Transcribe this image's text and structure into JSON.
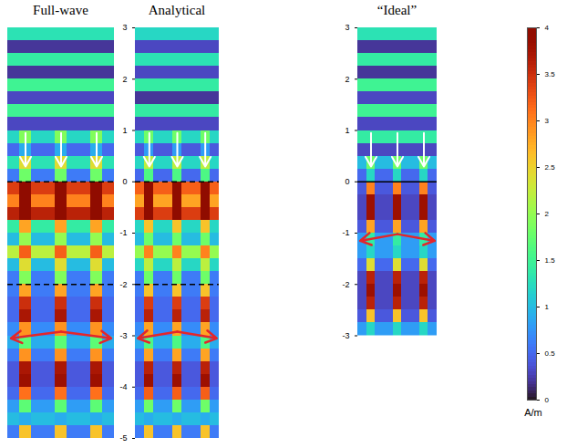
{
  "chart_data": [
    {
      "type": "heatmap",
      "title": "Full-wave",
      "xlim": [
        0,
        9
      ],
      "ylim": [
        -5,
        3
      ],
      "tick_labels": false,
      "ref_lines": [
        {
          "y": 0,
          "line_style": "dashed"
        },
        {
          "y": -2,
          "line_style": "dashed"
        }
      ],
      "arrow_y": -3,
      "values": [
        [
          1.3,
          1.3,
          1.3,
          1.3,
          1.3,
          1.3,
          1.3,
          1.3,
          1.3
        ],
        [
          0.2,
          0.2,
          0.2,
          0.2,
          0.2,
          0.2,
          0.2,
          0.2,
          0.2
        ],
        [
          1.4,
          1.4,
          1.4,
          1.4,
          1.4,
          1.4,
          1.4,
          1.4,
          1.4
        ],
        [
          0.2,
          0.2,
          0.2,
          0.2,
          0.2,
          0.2,
          0.2,
          0.2,
          0.2
        ],
        [
          1.5,
          1.5,
          1.5,
          1.5,
          1.5,
          1.5,
          1.5,
          1.5,
          1.5
        ],
        [
          0.3,
          0.3,
          0.3,
          0.3,
          0.3,
          0.3,
          0.3,
          0.3,
          0.3
        ],
        [
          1.5,
          1.5,
          1.5,
          1.5,
          1.5,
          1.5,
          1.5,
          1.5,
          1.5
        ],
        [
          0.3,
          0.3,
          0.3,
          0.3,
          0.3,
          0.3,
          0.3,
          0.3,
          0.3
        ],
        [
          1.2,
          1.9,
          1.2,
          1.2,
          1.9,
          1.2,
          1.2,
          1.9,
          1.2
        ],
        [
          0.5,
          0.9,
          0.5,
          0.5,
          0.9,
          0.5,
          0.5,
          0.9,
          0.5
        ],
        [
          1.3,
          2.4,
          1.3,
          1.3,
          2.4,
          1.3,
          1.3,
          2.4,
          1.3
        ],
        [
          0.6,
          1.8,
          0.6,
          0.6,
          1.8,
          0.6,
          0.6,
          1.8,
          0.6
        ],
        [
          3.4,
          4,
          3.4,
          3.4,
          4,
          3.4,
          3.4,
          4,
          3.4
        ],
        [
          3.0,
          4,
          3.0,
          3.0,
          4,
          3.0,
          3.0,
          4,
          3.0
        ],
        [
          3.6,
          4,
          3.6,
          3.6,
          4,
          3.6,
          3.6,
          4,
          3.6
        ],
        [
          1.4,
          2.8,
          1.4,
          1.4,
          2.8,
          1.4,
          1.4,
          2.8,
          1.4
        ],
        [
          1.0,
          2.0,
          1.0,
          1.0,
          2.0,
          1.0,
          1.0,
          2.0,
          1.0
        ],
        [
          2.2,
          3.2,
          2.2,
          2.2,
          3.2,
          2.2,
          2.2,
          3.2,
          2.2
        ],
        [
          1.0,
          2.4,
          1.0,
          1.0,
          2.4,
          1.0,
          1.0,
          2.4,
          1.0
        ],
        [
          0.6,
          1.9,
          0.6,
          0.6,
          1.9,
          0.6,
          0.6,
          1.9,
          0.6
        ],
        [
          0.6,
          2.8,
          0.6,
          0.6,
          2.8,
          0.6,
          0.6,
          2.8,
          0.6
        ],
        [
          0.5,
          3.5,
          0.5,
          0.5,
          3.5,
          0.5,
          0.5,
          3.5,
          0.5
        ],
        [
          0.5,
          3.7,
          0.5,
          0.5,
          3.7,
          0.5,
          0.5,
          3.7,
          0.5
        ],
        [
          0.7,
          2.9,
          0.7,
          0.7,
          2.9,
          0.7,
          0.7,
          2.9,
          0.7
        ],
        [
          0.9,
          1.7,
          0.9,
          0.9,
          1.7,
          0.9,
          0.9,
          1.7,
          0.9
        ],
        [
          0.6,
          2.9,
          0.6,
          0.6,
          2.9,
          0.6,
          0.6,
          2.9,
          0.6
        ],
        [
          0.4,
          3.7,
          0.4,
          0.4,
          3.7,
          0.4,
          0.4,
          3.7,
          0.4
        ],
        [
          0.4,
          3.8,
          0.4,
          0.4,
          3.8,
          0.4,
          0.4,
          3.8,
          0.4
        ],
        [
          0.5,
          3.1,
          0.5,
          0.5,
          3.1,
          0.5,
          0.5,
          3.1,
          0.5
        ],
        [
          0.8,
          1.7,
          0.8,
          0.8,
          1.7,
          0.8,
          0.8,
          1.7,
          0.8
        ],
        [
          1.0,
          0.9,
          1.0,
          1.0,
          0.9,
          1.0,
          1.0,
          0.9,
          1.0
        ],
        [
          0.6,
          2.6,
          0.6,
          0.6,
          2.6,
          0.6,
          0.6,
          2.6,
          0.6
        ]
      ]
    },
    {
      "type": "heatmap",
      "title": "Analytical",
      "xlim": [
        0,
        9
      ],
      "ylim": [
        -5,
        3
      ],
      "yticks": [
        3,
        2,
        1,
        0,
        -1,
        -2,
        -3,
        -4,
        -5
      ],
      "tick_labels": "y",
      "ref_lines": [
        {
          "y": 0,
          "line_style": "dashed"
        },
        {
          "y": -2,
          "line_style": "dashed"
        }
      ],
      "arrow_y": -3,
      "values": [
        [
          1.2,
          1.2,
          1.2,
          1.2,
          1.2,
          1.2,
          1.2,
          1.2,
          1.2
        ],
        [
          0.3,
          0.3,
          0.3,
          0.3,
          0.3,
          0.3,
          0.3,
          0.3,
          0.3
        ],
        [
          1.3,
          1.3,
          1.3,
          1.3,
          1.3,
          1.3,
          1.3,
          1.3,
          1.3
        ],
        [
          0.3,
          0.3,
          0.3,
          0.3,
          0.3,
          0.3,
          0.3,
          0.3,
          0.3
        ],
        [
          1.4,
          1.4,
          1.4,
          1.4,
          1.4,
          1.4,
          1.4,
          1.4,
          1.4
        ],
        [
          0.2,
          0.2,
          0.2,
          0.2,
          0.2,
          0.2,
          0.2,
          0.2,
          0.2
        ],
        [
          1.4,
          1.4,
          1.4,
          1.4,
          1.4,
          1.4,
          1.4,
          1.4,
          1.4
        ],
        [
          0.3,
          0.3,
          0.3,
          0.3,
          0.3,
          0.3,
          0.3,
          0.3,
          0.3
        ],
        [
          1.2,
          1.8,
          1.2,
          1.2,
          1.8,
          1.2,
          1.2,
          1.8,
          1.2
        ],
        [
          0.4,
          0.8,
          0.4,
          0.4,
          0.8,
          0.4,
          0.4,
          0.8,
          0.4
        ],
        [
          1.2,
          2.2,
          1.2,
          1.2,
          2.2,
          1.2,
          1.2,
          2.2,
          1.2
        ],
        [
          0.5,
          1.6,
          0.5,
          0.5,
          1.6,
          0.5,
          0.5,
          1.6,
          0.5
        ],
        [
          3.2,
          4,
          3.2,
          3.2,
          4,
          3.2,
          3.2,
          4,
          3.2
        ],
        [
          2.8,
          4,
          2.8,
          2.8,
          4,
          2.8,
          2.8,
          4,
          2.8
        ],
        [
          3.4,
          4,
          3.4,
          3.4,
          4,
          3.4,
          3.4,
          4,
          3.4
        ],
        [
          1.2,
          2.6,
          1.2,
          1.2,
          2.6,
          1.2,
          1.2,
          2.6,
          1.2
        ],
        [
          1.0,
          1.8,
          1.0,
          1.0,
          1.8,
          1.0,
          1.0,
          1.8,
          1.0
        ],
        [
          2.0,
          3.0,
          2.0,
          2.0,
          3.0,
          2.0,
          2.0,
          3.0,
          2.0
        ],
        [
          1.2,
          2.2,
          1.2,
          1.2,
          2.2,
          1.2,
          1.2,
          2.2,
          1.2
        ],
        [
          0.6,
          1.8,
          0.6,
          0.6,
          1.8,
          0.6,
          0.6,
          1.8,
          0.6
        ],
        [
          0.6,
          2.6,
          0.6,
          0.6,
          2.6,
          0.6,
          0.6,
          2.6,
          0.6
        ],
        [
          0.5,
          3.4,
          0.5,
          0.5,
          3.4,
          0.5,
          0.5,
          3.4,
          0.5
        ],
        [
          0.5,
          3.6,
          0.5,
          0.5,
          3.6,
          0.5,
          0.5,
          3.6,
          0.5
        ],
        [
          0.7,
          2.8,
          0.7,
          0.7,
          2.8,
          0.7,
          0.7,
          2.8,
          0.7
        ],
        [
          0.9,
          1.6,
          0.9,
          0.9,
          1.6,
          0.9,
          0.9,
          1.6,
          0.9
        ],
        [
          0.6,
          2.8,
          0.6,
          0.6,
          2.8,
          0.6,
          0.6,
          2.8,
          0.6
        ],
        [
          0.4,
          3.6,
          0.4,
          0.4,
          3.6,
          0.4,
          0.4,
          3.6,
          0.4
        ],
        [
          0.4,
          3.8,
          0.4,
          0.4,
          3.8,
          0.4,
          0.4,
          3.8,
          0.4
        ],
        [
          0.5,
          3.2,
          0.5,
          0.5,
          3.2,
          0.5,
          0.5,
          3.2,
          0.5
        ],
        [
          0.8,
          1.8,
          0.8,
          0.8,
          1.8,
          0.8,
          0.8,
          1.8,
          0.8
        ],
        [
          1.0,
          0.9,
          1.0,
          1.0,
          0.9,
          1.0,
          1.0,
          0.9,
          1.0
        ],
        [
          0.6,
          2.6,
          0.6,
          0.6,
          2.6,
          0.6,
          0.6,
          2.6,
          0.6
        ]
      ]
    },
    {
      "type": "heatmap",
      "title": "“Ideal”",
      "xlim": [
        0,
        9
      ],
      "ylim": [
        -3,
        3
      ],
      "yticks": [
        3,
        2,
        1,
        0,
        -1,
        -2,
        -3
      ],
      "tick_labels": "y",
      "ref_lines": [
        {
          "y": 0,
          "line_style": "solid"
        }
      ],
      "arrow_y": -1.1,
      "values": [
        [
          1.3,
          1.3,
          1.3,
          1.3,
          1.3,
          1.3,
          1.3,
          1.3,
          1.3
        ],
        [
          0.2,
          0.2,
          0.2,
          0.2,
          0.2,
          0.2,
          0.2,
          0.2,
          0.2
        ],
        [
          1.4,
          1.4,
          1.4,
          1.4,
          1.4,
          1.4,
          1.4,
          1.4,
          1.4
        ],
        [
          0.2,
          0.2,
          0.2,
          0.2,
          0.2,
          0.2,
          0.2,
          0.2,
          0.2
        ],
        [
          1.5,
          1.5,
          1.5,
          1.5,
          1.5,
          1.5,
          1.5,
          1.5,
          1.5
        ],
        [
          0.3,
          0.3,
          0.3,
          0.3,
          0.3,
          0.3,
          0.3,
          0.3,
          0.3
        ],
        [
          1.5,
          1.5,
          1.5,
          1.5,
          1.5,
          1.5,
          1.5,
          1.5,
          1.5
        ],
        [
          0.3,
          0.3,
          0.3,
          0.3,
          0.3,
          0.3,
          0.3,
          0.3,
          0.3
        ],
        [
          1.4,
          1.4,
          1.4,
          1.4,
          1.4,
          1.4,
          1.4,
          1.4,
          1.4
        ],
        [
          0.3,
          0.3,
          0.3,
          0.3,
          0.3,
          0.3,
          0.3,
          0.3,
          0.3
        ],
        [
          1.0,
          1.8,
          1.0,
          1.0,
          1.8,
          1.0,
          1.0,
          1.8,
          1.0
        ],
        [
          0.5,
          1.2,
          0.5,
          0.5,
          1.2,
          0.5,
          0.5,
          1.2,
          0.5
        ],
        [
          0.4,
          3.0,
          0.4,
          0.4,
          3.0,
          0.4,
          0.4,
          3.0,
          0.4
        ],
        [
          0.3,
          3.8,
          0.3,
          0.3,
          3.8,
          0.3,
          0.3,
          3.8,
          0.3
        ],
        [
          0.3,
          3.8,
          0.3,
          0.3,
          3.8,
          0.3,
          0.3,
          3.8,
          0.3
        ],
        [
          0.4,
          2.8,
          0.4,
          0.4,
          2.8,
          0.4,
          0.4,
          2.8,
          0.4
        ],
        [
          0.8,
          1.4,
          0.8,
          0.8,
          1.4,
          0.8,
          0.8,
          1.4,
          0.8
        ],
        [
          0.8,
          1.2,
          0.8,
          0.8,
          1.2,
          0.8,
          0.8,
          1.2,
          0.8
        ],
        [
          0.5,
          2.4,
          0.5,
          0.5,
          2.4,
          0.5,
          0.5,
          2.4,
          0.5
        ],
        [
          0.3,
          3.6,
          0.3,
          0.3,
          3.6,
          0.3,
          0.3,
          3.6,
          0.3
        ],
        [
          0.3,
          3.8,
          0.3,
          0.3,
          3.8,
          0.3,
          0.3,
          3.8,
          0.3
        ],
        [
          0.3,
          3.6,
          0.3,
          0.3,
          3.6,
          0.3,
          0.3,
          3.6,
          0.3
        ],
        [
          0.4,
          2.6,
          0.4,
          0.4,
          2.6,
          0.4,
          0.4,
          2.6,
          0.4
        ],
        [
          0.8,
          1.2,
          0.8,
          0.8,
          1.2,
          0.8,
          0.8,
          1.2,
          0.8
        ]
      ]
    }
  ],
  "colorbar": {
    "range": [
      0,
      4
    ],
    "ticks": [
      0,
      0.5,
      1,
      1.5,
      2,
      2.5,
      3,
      3.5,
      4
    ],
    "label": "A/m"
  }
}
